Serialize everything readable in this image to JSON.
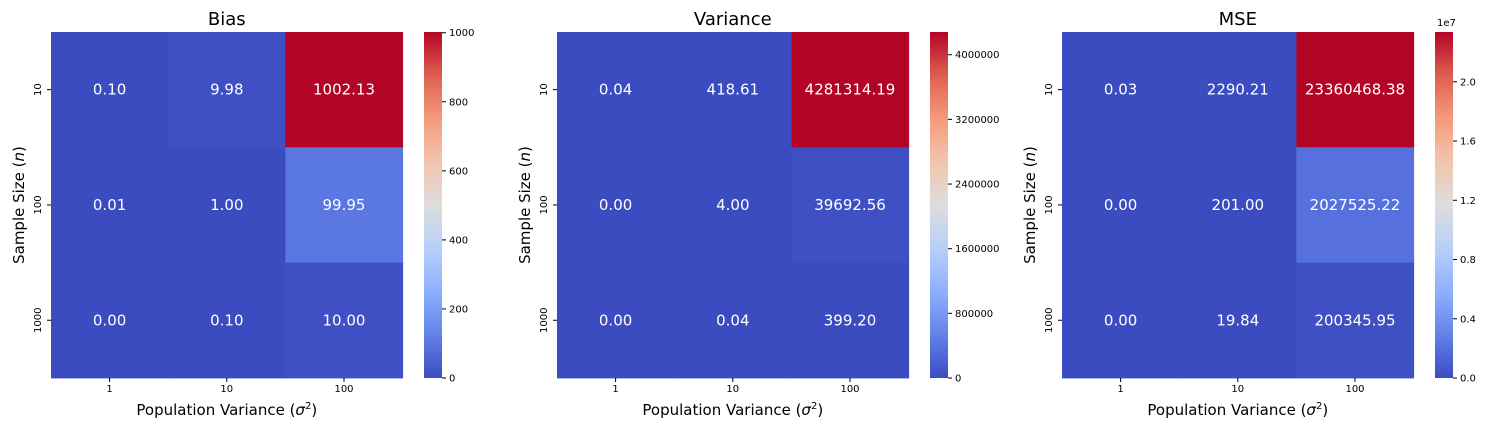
{
  "chart_data": [
    {
      "type": "heatmap",
      "title": "Bias",
      "xlabel": "Population Variance (σ²)",
      "ylabel": "Sample Size (n)",
      "x_categories": [
        "1",
        "10",
        "100"
      ],
      "y_categories": [
        "10",
        "100",
        "1000"
      ],
      "values": [
        [
          0.1,
          9.98,
          1002.13
        ],
        [
          0.01,
          1.0,
          99.95
        ],
        [
          0.0,
          0.1,
          10.0
        ]
      ],
      "cell_labels": [
        [
          "0.10",
          "9.98",
          "1002.13"
        ],
        [
          "0.01",
          "1.00",
          "99.95"
        ],
        [
          "0.00",
          "0.10",
          "10.00"
        ]
      ],
      "colormap": "coolwarm",
      "colorbar": {
        "ticks": [
          0,
          200,
          400,
          600,
          800,
          1000
        ],
        "tick_labels": [
          "0",
          "200",
          "400",
          "600",
          "800",
          "1000"
        ],
        "exponent_label": ""
      }
    },
    {
      "type": "heatmap",
      "title": "Variance",
      "xlabel": "Population Variance (σ²)",
      "ylabel": "Sample Size (n)",
      "x_categories": [
        "1",
        "10",
        "100"
      ],
      "y_categories": [
        "10",
        "100",
        "1000"
      ],
      "values": [
        [
          0.04,
          418.61,
          4281314.19
        ],
        [
          0.0,
          4.0,
          39692.56
        ],
        [
          0.0,
          0.04,
          399.2
        ]
      ],
      "cell_labels": [
        [
          "0.04",
          "418.61",
          "4281314.19"
        ],
        [
          "0.00",
          "4.00",
          "39692.56"
        ],
        [
          "0.00",
          "0.04",
          "399.20"
        ]
      ],
      "colormap": "coolwarm",
      "colorbar": {
        "ticks": [
          0,
          800000,
          1600000,
          2400000,
          3200000,
          4000000
        ],
        "tick_labels": [
          "0",
          "800000",
          "1600000",
          "2400000",
          "3200000",
          "4000000"
        ],
        "exponent_label": ""
      }
    },
    {
      "type": "heatmap",
      "title": "MSE",
      "xlabel": "Population Variance (σ²)",
      "ylabel": "Sample Size (n)",
      "x_categories": [
        "1",
        "10",
        "100"
      ],
      "y_categories": [
        "10",
        "100",
        "1000"
      ],
      "values": [
        [
          0.03,
          2290.21,
          23360468.38
        ],
        [
          0.0,
          201.0,
          2027525.22
        ],
        [
          0.0,
          19.84,
          200345.95
        ]
      ],
      "cell_labels": [
        [
          "0.03",
          "2290.21",
          "23360468.38"
        ],
        [
          "0.00",
          "201.00",
          "2027525.22"
        ],
        [
          "0.00",
          "19.84",
          "200345.95"
        ]
      ],
      "colormap": "coolwarm",
      "colorbar": {
        "ticks": [
          0,
          4000000,
          8000000,
          12000000,
          16000000,
          20000000
        ],
        "tick_labels": [
          "0.0",
          "0.4",
          "0.8",
          "1.2",
          "1.6",
          "2.0"
        ],
        "exponent_label": "1e7"
      }
    }
  ]
}
